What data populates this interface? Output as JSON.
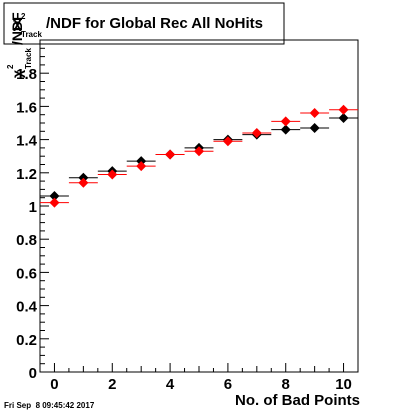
{
  "title": {
    "chi": "χ",
    "sup": "2",
    "sub": "Track",
    "rest": "/NDF for Global Rec All NoHits"
  },
  "ylabel": {
    "chi": "χ",
    "sup": "2",
    "sub": "Track",
    "rest": "/NDF"
  },
  "xlabel": "No. of Bad Points",
  "footer": "Fri Sep  8 09:45:42 2017",
  "colors": {
    "black_series": "#000000",
    "red_series": "#ff0000",
    "frame": "#000000",
    "background": "#ffffff"
  },
  "chart_data": {
    "type": "scatter",
    "xlabel": "No. of Bad Points",
    "ylabel": "χ²Track/NDF",
    "xlim": [
      -0.5,
      10.5
    ],
    "ylim": [
      0,
      2
    ],
    "x_ticks": [
      0,
      2,
      4,
      6,
      8,
      10
    ],
    "y_ticks": [
      0,
      0.2,
      0.4,
      0.6,
      0.8,
      1,
      1.2,
      1.4,
      1.6,
      1.8
    ],
    "x_tick_labels": [
      "0",
      "2",
      "4",
      "6",
      "8",
      "10"
    ],
    "y_tick_labels": [
      "0",
      "0.2",
      "0.4",
      "0.6",
      "0.8",
      "1",
      "1.2",
      "1.4",
      "1.6",
      "1.8"
    ],
    "x_error_halfwidth": 0.5,
    "grid": false,
    "series": [
      {
        "color": "#000000",
        "marker": "diamond",
        "x": [
          0,
          1,
          2,
          3,
          4,
          5,
          6,
          7,
          8,
          9,
          10
        ],
        "y": [
          1.06,
          1.17,
          1.21,
          1.27,
          1.31,
          1.35,
          1.4,
          1.43,
          1.46,
          1.47,
          1.53
        ]
      },
      {
        "color": "#ff0000",
        "marker": "diamond",
        "x": [
          0,
          1,
          2,
          3,
          4,
          5,
          6,
          7,
          8,
          9,
          10
        ],
        "y": [
          1.02,
          1.14,
          1.19,
          1.24,
          1.31,
          1.33,
          1.39,
          1.44,
          1.51,
          1.56,
          1.58
        ]
      }
    ]
  }
}
